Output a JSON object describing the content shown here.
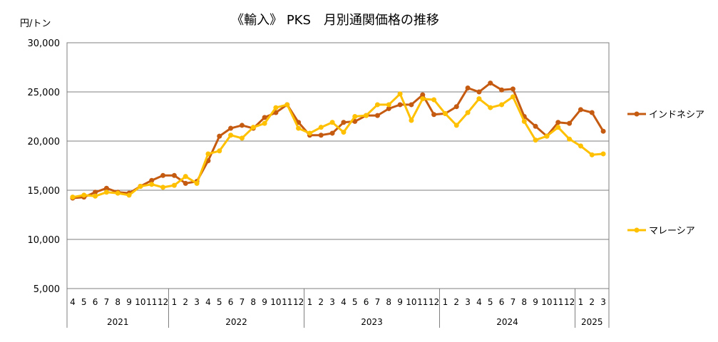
{
  "chart_data": {
    "type": "line",
    "title": "《輸入》 PKS　月別通関価格の推移",
    "ylabel": "円/トン",
    "ylim": [
      5000,
      30000
    ],
    "yticks": [
      "5,000",
      "10,000",
      "15,000",
      "20,000",
      "25,000",
      "30,000"
    ],
    "grid": true,
    "legend_position": "right",
    "categories": [
      "4",
      "5",
      "6",
      "7",
      "8",
      "9",
      "10",
      "11",
      "12",
      "1",
      "2",
      "3",
      "4",
      "5",
      "6",
      "7",
      "8",
      "9",
      "10",
      "11",
      "12",
      "1",
      "2",
      "3",
      "4",
      "5",
      "6",
      "7",
      "8",
      "9",
      "10",
      "11",
      "12",
      "1",
      "2",
      "3",
      "4",
      "5",
      "6",
      "7",
      "8",
      "9",
      "10",
      "11",
      "12",
      "1",
      "2",
      "3"
    ],
    "year_groups": [
      {
        "label": "2021",
        "count": 9
      },
      {
        "label": "2022",
        "count": 12
      },
      {
        "label": "2023",
        "count": 12
      },
      {
        "label": "2024",
        "count": 12
      },
      {
        "label": "2025",
        "count": 3
      }
    ],
    "series": [
      {
        "name": "インドネシア",
        "color": "#c55a11",
        "values": [
          14200,
          14300,
          14800,
          15200,
          14800,
          14700,
          15400,
          16000,
          16500,
          16500,
          15700,
          15900,
          18000,
          20500,
          21300,
          21600,
          21300,
          22400,
          22900,
          23700,
          21900,
          20600,
          20600,
          20800,
          21900,
          22000,
          22600,
          22600,
          23300,
          23700,
          23700,
          24700,
          22700,
          22800,
          23500,
          25400,
          25000,
          25900,
          25200,
          25300,
          22500,
          21500,
          20500,
          21900,
          21800,
          23200,
          22900,
          21000
        ]
      },
      {
        "name": "マレーシア",
        "color": "#ffc000",
        "values": [
          14300,
          14500,
          14400,
          14800,
          14700,
          14500,
          15400,
          15600,
          15300,
          15500,
          16400,
          15700,
          18700,
          19000,
          20600,
          20300,
          21400,
          21800,
          23400,
          23700,
          21300,
          20800,
          21400,
          21900,
          20900,
          22500,
          22600,
          23700,
          23700,
          24800,
          22100,
          24300,
          24200,
          22800,
          21600,
          22900,
          24300,
          23400,
          23700,
          24500,
          22000,
          20100,
          20500,
          21400,
          20200,
          19500,
          18600,
          18700
        ]
      }
    ]
  }
}
